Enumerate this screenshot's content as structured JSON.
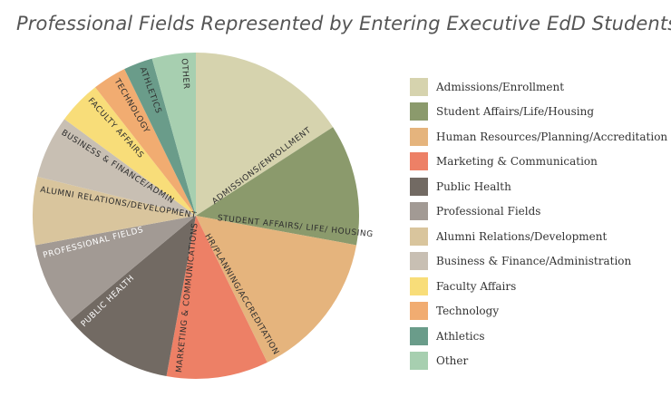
{
  "chart_data": {
    "type": "pie",
    "title": "Professional Fields Represented by Entering Executive EdD Students",
    "legend_position": "right",
    "slices": [
      {
        "legend": "Admissions/Enrollment",
        "label": "ADMISSIONS/ENROLLMENT",
        "value": 16.5,
        "color": "#d6d3ae"
      },
      {
        "legend": "Student Affairs/Life/Housing",
        "label": "STUDENT AFFAIRS/ LIFE/ HOUSING",
        "value": 12.5,
        "color": "#8b9a6c"
      },
      {
        "legend": "Human Resources/Planning/Accreditation",
        "label": "HR/PLANNING/ACCREDITATION",
        "value": 15.5,
        "color": "#e5b47d"
      },
      {
        "legend": "Marketing & Communication",
        "label": "MARKETING & COMMUNICATIONS",
        "value": 10.5,
        "color": "#ed8066"
      },
      {
        "legend": "Public Health",
        "label": "PUBLIC HEALTH",
        "value": 11.5,
        "color": "#726a63"
      },
      {
        "legend": "Professional Fields",
        "label": "PROFESSIONAL FIELDS",
        "value": 8.5,
        "color": "#a29a94"
      },
      {
        "legend": "Alumni Relations/Development",
        "label": "ALUMNI RELATIONS/DEVELOPMENT",
        "value": 7,
        "color": "#d9c59d"
      },
      {
        "legend": "Business & Finance/Administration",
        "label": "BUSINESS & FINANCE/ADMIN",
        "value": 6.5,
        "color": "#c8bfb3"
      },
      {
        "legend": "Faculty Affairs",
        "label": "FACULTY AFFAIRS",
        "value": 4.5,
        "color": "#f8dd79"
      },
      {
        "legend": "Technology",
        "label": "TECHNOLOGY",
        "value": 3.5,
        "color": "#f1ac71"
      },
      {
        "legend": "Athletics",
        "label": "ATHLETICS",
        "value": 3,
        "color": "#6a9c8a"
      },
      {
        "legend": "Other",
        "label": "OTHER",
        "value": 4.5,
        "color": "#a7cfb0"
      }
    ]
  }
}
